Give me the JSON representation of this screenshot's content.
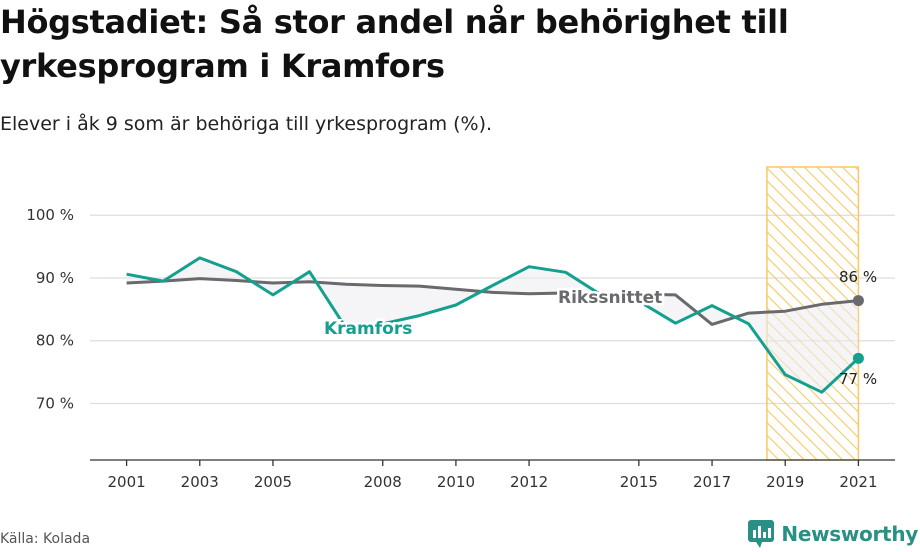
{
  "title": "Högstadiet: Så stor andel når behörighet till yrkesprogram i Kramfors",
  "subtitle": "Elever i åk 9 som är behöriga till yrkesprogram (%).",
  "source": "Källa: Kolada",
  "brand": "Newsworthy",
  "colors": {
    "kramfors": "#14a08f",
    "riket": "#6a6a6e",
    "highlight": "#f5c04a",
    "grid": "#dddddd"
  },
  "chart_data": {
    "type": "line",
    "x": [
      2001,
      2002,
      2003,
      2004,
      2005,
      2006,
      2007,
      2008,
      2009,
      2010,
      2011,
      2012,
      2013,
      2014,
      2015,
      2016,
      2017,
      2018,
      2019,
      2020,
      2021
    ],
    "xticks": [
      2001,
      2003,
      2005,
      2008,
      2010,
      2012,
      2015,
      2017,
      2019,
      2021
    ],
    "xlim": [
      2000,
      2022
    ],
    "yticks": [
      70,
      80,
      90,
      100
    ],
    "ytick_labels": [
      "70 %",
      "80 %",
      "90 %",
      "100 %"
    ],
    "ylim": [
      61,
      108
    ],
    "highlight_range": [
      2018.5,
      2021
    ],
    "series": [
      {
        "name": "Kramfors",
        "values": [
          90.6,
          89.5,
          93.2,
          91.0,
          87.3,
          91.0,
          82.0,
          82.7,
          84.0,
          85.7,
          88.8,
          91.8,
          90.9,
          87.2,
          86.3,
          82.8,
          85.6,
          82.7,
          74.6,
          71.8,
          77.2
        ]
      },
      {
        "name": "Rikssnittet",
        "values": [
          89.2,
          89.5,
          89.9,
          89.6,
          89.2,
          89.4,
          89.0,
          88.8,
          88.7,
          88.2,
          87.7,
          87.5,
          87.6,
          87.5,
          87.4,
          87.3,
          82.6,
          84.4,
          84.7,
          85.8,
          86.4
        ]
      }
    ],
    "end_labels": {
      "Rikssnittet": "86 %",
      "Kramfors": "77 %"
    }
  }
}
